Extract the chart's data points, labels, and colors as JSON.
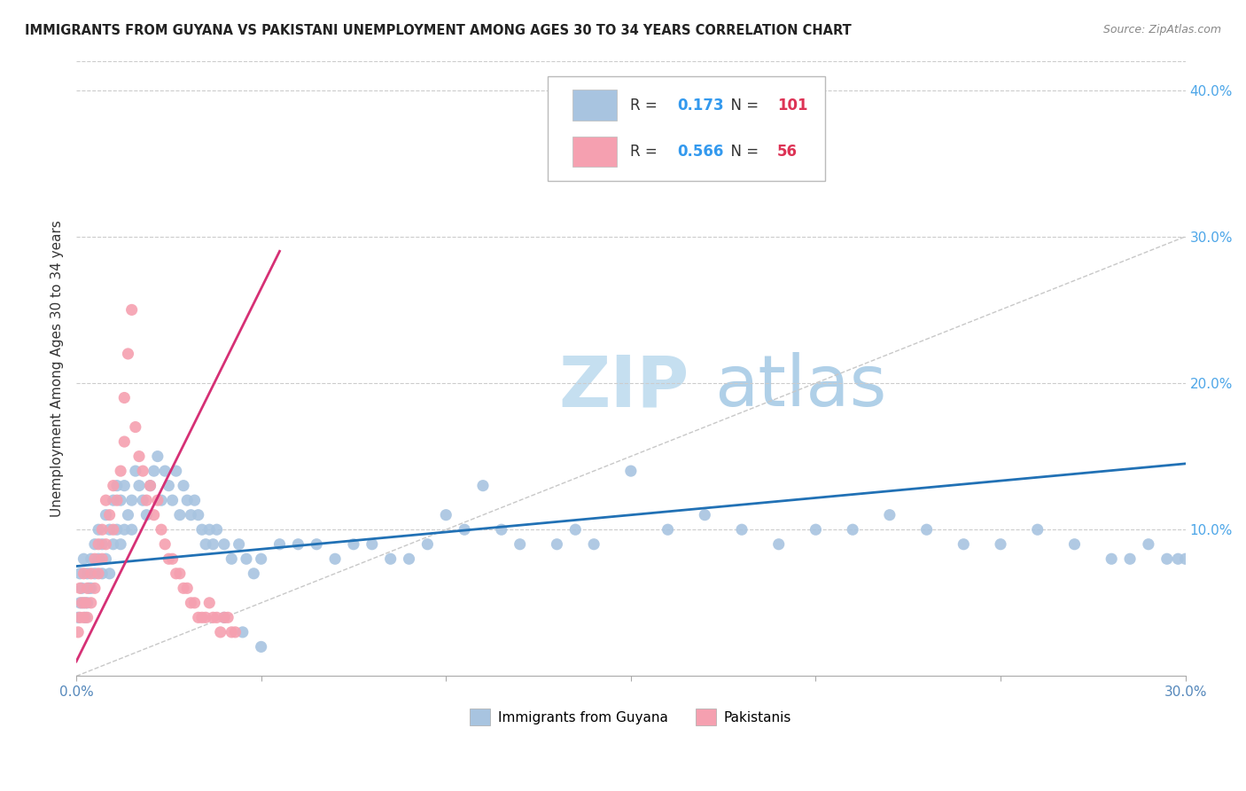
{
  "title": "IMMIGRANTS FROM GUYANA VS PAKISTANI UNEMPLOYMENT AMONG AGES 30 TO 34 YEARS CORRELATION CHART",
  "source": "Source: ZipAtlas.com",
  "ylabel": "Unemployment Among Ages 30 to 34 years",
  "watermark_zip": "ZIP",
  "watermark_atlas": "atlas",
  "xlim": [
    0.0,
    0.3
  ],
  "ylim": [
    0.0,
    0.42
  ],
  "xtick_positions": [
    0.0,
    0.05,
    0.1,
    0.15,
    0.2,
    0.25,
    0.3
  ],
  "xtick_labels_map": {
    "0.0": "0.0%",
    "0.3": "30.0%"
  },
  "yticks_right": [
    0.0,
    0.1,
    0.2,
    0.3,
    0.4
  ],
  "ytick_labels_right": [
    "",
    "10.0%",
    "20.0%",
    "30.0%",
    "40.0%"
  ],
  "legend_entries": [
    {
      "label": "Immigrants from Guyana",
      "color": "#a8c4e0",
      "R": "0.173",
      "N": "101"
    },
    {
      "label": "Pakistanis",
      "color": "#f5a0b0",
      "R": "0.566",
      "N": "56"
    }
  ],
  "blue_scatter_x": [
    0.0005,
    0.001,
    0.001,
    0.0015,
    0.002,
    0.002,
    0.0025,
    0.003,
    0.003,
    0.0035,
    0.004,
    0.004,
    0.005,
    0.005,
    0.006,
    0.006,
    0.007,
    0.007,
    0.008,
    0.008,
    0.009,
    0.009,
    0.01,
    0.01,
    0.011,
    0.011,
    0.012,
    0.012,
    0.013,
    0.013,
    0.014,
    0.015,
    0.015,
    0.016,
    0.017,
    0.018,
    0.019,
    0.02,
    0.021,
    0.022,
    0.023,
    0.024,
    0.025,
    0.026,
    0.027,
    0.028,
    0.029,
    0.03,
    0.031,
    0.032,
    0.033,
    0.034,
    0.035,
    0.036,
    0.037,
    0.038,
    0.04,
    0.042,
    0.044,
    0.046,
    0.048,
    0.05,
    0.055,
    0.06,
    0.065,
    0.07,
    0.075,
    0.08,
    0.085,
    0.09,
    0.095,
    0.1,
    0.105,
    0.11,
    0.115,
    0.12,
    0.13,
    0.135,
    0.14,
    0.15,
    0.16,
    0.17,
    0.18,
    0.19,
    0.2,
    0.21,
    0.22,
    0.23,
    0.24,
    0.25,
    0.26,
    0.27,
    0.28,
    0.285,
    0.29,
    0.295,
    0.298,
    0.3,
    0.04,
    0.045,
    0.05
  ],
  "blue_scatter_y": [
    0.04,
    0.05,
    0.07,
    0.06,
    0.05,
    0.08,
    0.04,
    0.05,
    0.07,
    0.06,
    0.06,
    0.08,
    0.07,
    0.09,
    0.08,
    0.1,
    0.07,
    0.09,
    0.08,
    0.11,
    0.07,
    0.1,
    0.09,
    0.12,
    0.1,
    0.13,
    0.09,
    0.12,
    0.1,
    0.13,
    0.11,
    0.12,
    0.1,
    0.14,
    0.13,
    0.12,
    0.11,
    0.13,
    0.14,
    0.15,
    0.12,
    0.14,
    0.13,
    0.12,
    0.14,
    0.11,
    0.13,
    0.12,
    0.11,
    0.12,
    0.11,
    0.1,
    0.09,
    0.1,
    0.09,
    0.1,
    0.09,
    0.08,
    0.09,
    0.08,
    0.07,
    0.08,
    0.09,
    0.09,
    0.09,
    0.08,
    0.09,
    0.09,
    0.08,
    0.08,
    0.09,
    0.11,
    0.1,
    0.13,
    0.1,
    0.09,
    0.09,
    0.1,
    0.09,
    0.14,
    0.1,
    0.11,
    0.1,
    0.09,
    0.1,
    0.1,
    0.11,
    0.1,
    0.09,
    0.09,
    0.1,
    0.09,
    0.08,
    0.08,
    0.09,
    0.08,
    0.08,
    0.08,
    0.04,
    0.03,
    0.02
  ],
  "pink_scatter_x": [
    0.0005,
    0.001,
    0.001,
    0.0015,
    0.002,
    0.002,
    0.0025,
    0.003,
    0.003,
    0.004,
    0.004,
    0.005,
    0.005,
    0.006,
    0.006,
    0.007,
    0.007,
    0.008,
    0.008,
    0.009,
    0.01,
    0.01,
    0.011,
    0.012,
    0.013,
    0.013,
    0.014,
    0.015,
    0.016,
    0.017,
    0.018,
    0.019,
    0.02,
    0.021,
    0.022,
    0.023,
    0.024,
    0.025,
    0.026,
    0.027,
    0.028,
    0.029,
    0.03,
    0.031,
    0.032,
    0.033,
    0.034,
    0.035,
    0.036,
    0.037,
    0.038,
    0.039,
    0.04,
    0.041,
    0.042,
    0.043
  ],
  "pink_scatter_y": [
    0.03,
    0.04,
    0.06,
    0.05,
    0.04,
    0.07,
    0.05,
    0.04,
    0.06,
    0.05,
    0.07,
    0.06,
    0.08,
    0.07,
    0.09,
    0.08,
    0.1,
    0.09,
    0.12,
    0.11,
    0.1,
    0.13,
    0.12,
    0.14,
    0.16,
    0.19,
    0.22,
    0.25,
    0.17,
    0.15,
    0.14,
    0.12,
    0.13,
    0.11,
    0.12,
    0.1,
    0.09,
    0.08,
    0.08,
    0.07,
    0.07,
    0.06,
    0.06,
    0.05,
    0.05,
    0.04,
    0.04,
    0.04,
    0.05,
    0.04,
    0.04,
    0.03,
    0.04,
    0.04,
    0.03,
    0.03
  ],
  "blue_line_x": [
    0.0,
    0.3
  ],
  "blue_line_y": [
    0.075,
    0.145
  ],
  "pink_line_x": [
    0.0,
    0.055
  ],
  "pink_line_y": [
    0.01,
    0.29
  ],
  "grey_line_x": [
    0.0,
    0.42
  ],
  "grey_line_y": [
    0.0,
    0.42
  ],
  "blue_scatter_color": "#a8c4e0",
  "pink_scatter_color": "#f5a0b0",
  "grey_line_color": "#c8c8c8",
  "blue_line_color": "#2171b5",
  "pink_line_color": "#d63075",
  "watermark_color_zip": "#c5dff0",
  "watermark_color_atlas": "#b0d0e8",
  "background_color": "#ffffff"
}
